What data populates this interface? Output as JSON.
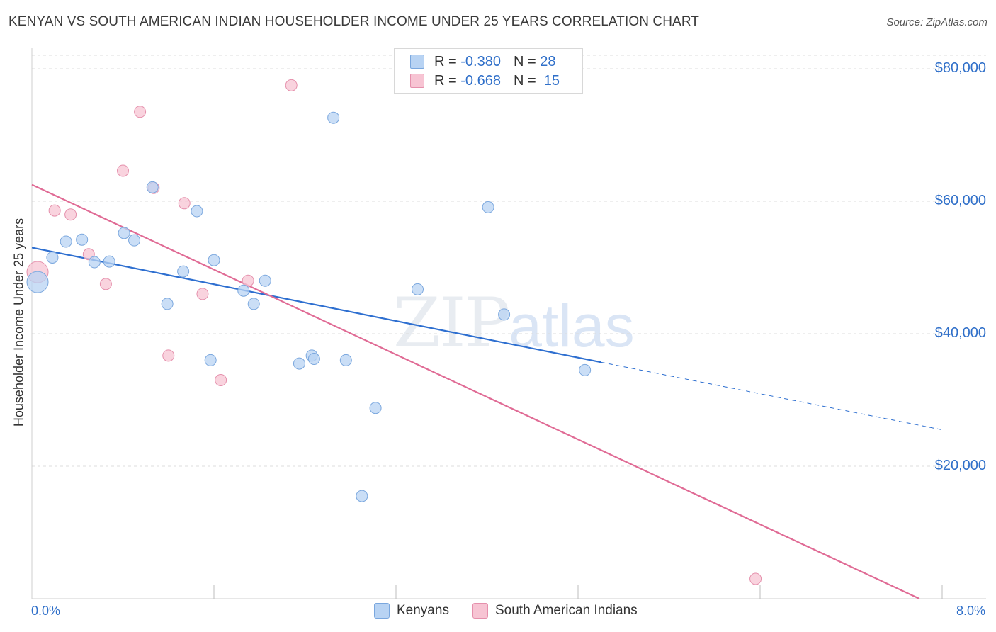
{
  "header": {
    "title": "KENYAN VS SOUTH AMERICAN INDIAN HOUSEHOLDER INCOME UNDER 25 YEARS CORRELATION CHART",
    "source": "Source: ZipAtlas.com"
  },
  "watermark": {
    "zip": "ZIP",
    "atlas": "atlas"
  },
  "legend": {
    "kenyans": {
      "r_label": "R =",
      "r_value": "-0.380",
      "n_label": "N =",
      "n_value": "28"
    },
    "sai": {
      "r_label": "R =",
      "r_value": "-0.668",
      "n_label": "N =",
      "n_value": "15"
    }
  },
  "colors": {
    "kenyan_fill": "#b8d3f3",
    "kenyan_stroke": "#7aa7de",
    "kenyan_line": "#2e6fd0",
    "sai_fill": "#f7c4d3",
    "sai_stroke": "#e590ac",
    "sai_line": "#e06b95",
    "grid": "#dcdcdc",
    "axis_text": "#2f6fc9"
  },
  "chart_data": {
    "type": "scatter",
    "title": "KENYAN VS SOUTH AMERICAN INDIAN HOUSEHOLDER INCOME UNDER 25 YEARS CORRELATION CHART",
    "xlabel": "",
    "ylabel": "Householder Income Under 25 years",
    "xlim": [
      0,
      8
    ],
    "ylim": [
      0,
      80000
    ],
    "x_tick_labels": [
      "0.0%",
      "8.0%"
    ],
    "y_ticks": [
      20000,
      40000,
      60000,
      80000
    ],
    "y_tick_labels": [
      "$20,000",
      "$40,000",
      "$60,000",
      "$80,000"
    ],
    "legend_position": "top-center",
    "series": [
      {
        "name": "Kenyans",
        "points": [
          {
            "x": 0.05,
            "y": 47800,
            "big": true
          },
          {
            "x": 0.18,
            "y": 51500
          },
          {
            "x": 0.3,
            "y": 53900
          },
          {
            "x": 0.44,
            "y": 54200
          },
          {
            "x": 0.55,
            "y": 50800
          },
          {
            "x": 0.68,
            "y": 50900
          },
          {
            "x": 0.81,
            "y": 55200
          },
          {
            "x": 0.9,
            "y": 54100
          },
          {
            "x": 1.06,
            "y": 62100
          },
          {
            "x": 1.19,
            "y": 44500
          },
          {
            "x": 1.33,
            "y": 49400
          },
          {
            "x": 1.45,
            "y": 58500
          },
          {
            "x": 1.57,
            "y": 36000
          },
          {
            "x": 1.6,
            "y": 51100
          },
          {
            "x": 1.86,
            "y": 46500
          },
          {
            "x": 1.95,
            "y": 44500
          },
          {
            "x": 2.05,
            "y": 48000
          },
          {
            "x": 2.35,
            "y": 35500
          },
          {
            "x": 2.46,
            "y": 36700
          },
          {
            "x": 2.48,
            "y": 36200
          },
          {
            "x": 2.65,
            "y": 72600
          },
          {
            "x": 2.76,
            "y": 36000
          },
          {
            "x": 2.9,
            "y": 15500
          },
          {
            "x": 3.02,
            "y": 28800
          },
          {
            "x": 3.39,
            "y": 46700
          },
          {
            "x": 4.01,
            "y": 59100
          },
          {
            "x": 4.15,
            "y": 42900
          },
          {
            "x": 4.86,
            "y": 34500
          }
        ],
        "trend": {
          "x0": 0,
          "y0": 53000,
          "x1": 5.0,
          "y1": 35700,
          "dash_to_x": 8.0,
          "dash_to_y": 25500
        }
      },
      {
        "name": "South American Indians",
        "points": [
          {
            "x": 0.05,
            "y": 49300,
            "big": true
          },
          {
            "x": 0.2,
            "y": 58600
          },
          {
            "x": 0.34,
            "y": 58000
          },
          {
            "x": 0.5,
            "y": 52000
          },
          {
            "x": 0.65,
            "y": 47500
          },
          {
            "x": 0.8,
            "y": 64600
          },
          {
            "x": 0.95,
            "y": 73500
          },
          {
            "x": 1.07,
            "y": 62000
          },
          {
            "x": 1.2,
            "y": 36700
          },
          {
            "x": 1.34,
            "y": 59700
          },
          {
            "x": 1.5,
            "y": 46000
          },
          {
            "x": 1.66,
            "y": 33000
          },
          {
            "x": 1.9,
            "y": 48000
          },
          {
            "x": 2.28,
            "y": 77500
          },
          {
            "x": 6.36,
            "y": 3000
          }
        ],
        "trend": {
          "x0": 0,
          "y0": 62500,
          "x1": 7.8,
          "y1": 0
        }
      }
    ]
  }
}
